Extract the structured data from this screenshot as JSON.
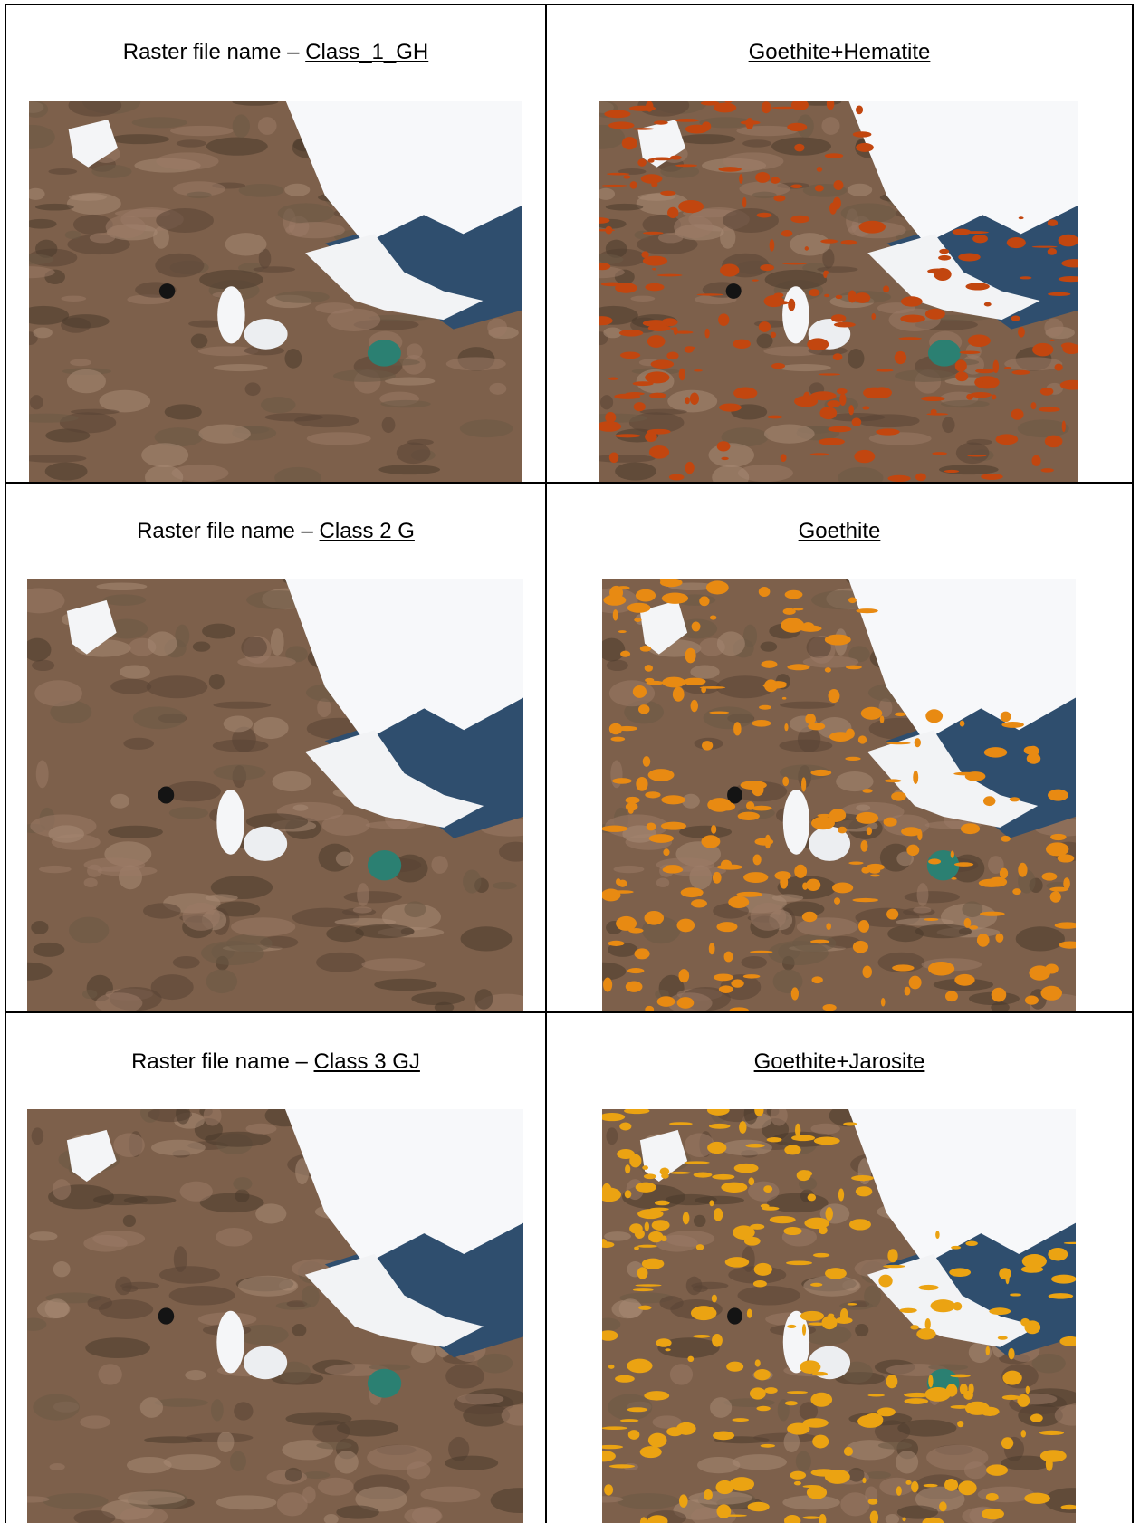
{
  "table": {
    "rows": [
      {
        "left": {
          "label": "Raster file name –",
          "file": "Class_1_GH"
        },
        "right": {
          "mineral": "Goethite+Hematite"
        }
      },
      {
        "left": {
          "label": "Raster file name –",
          "file": "Class 2 G"
        },
        "right": {
          "mineral": "Goethite"
        }
      },
      {
        "left": {
          "label": "Raster file name –",
          "file": "Class 3 GJ"
        },
        "right": {
          "mineral": "Goethite+Jarosite"
        }
      }
    ]
  }
}
